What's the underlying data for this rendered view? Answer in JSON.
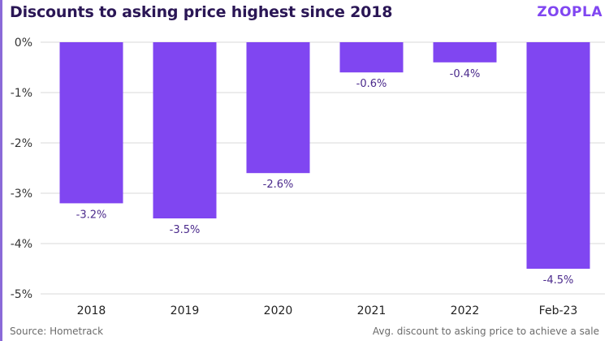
{
  "header": {
    "title": "Discounts to asking price highest since 2018",
    "logo_text": "ZOOPLA"
  },
  "footer": {
    "source": "Source: Hometrack",
    "note": "Avg. discount to asking price to achieve a sale"
  },
  "colors": {
    "bar": "#8046f1",
    "label": "#4b2a8c",
    "title": "#2a1655",
    "grid": "#d9d9d9"
  },
  "chart_data": {
    "type": "bar",
    "categories": [
      "2018",
      "2019",
      "2020",
      "2021",
      "2022",
      "Feb-23"
    ],
    "values": [
      -3.2,
      -3.5,
      -2.6,
      -0.6,
      -0.4,
      -4.5
    ],
    "data_labels": [
      "-3.2%",
      "-3.5%",
      "-2.6%",
      "-0.6%",
      "-0.4%",
      "-4.5%"
    ],
    "title": "Discounts to asking price highest since 2018",
    "xlabel": "",
    "ylabel": "",
    "ylim": [
      -5,
      0
    ],
    "yticks": [
      0,
      -1,
      -2,
      -3,
      -4,
      -5
    ],
    "ytick_labels": [
      "0%",
      "-1%",
      "-2%",
      "-3%",
      "-4%",
      "-5%"
    ],
    "grid": true
  }
}
